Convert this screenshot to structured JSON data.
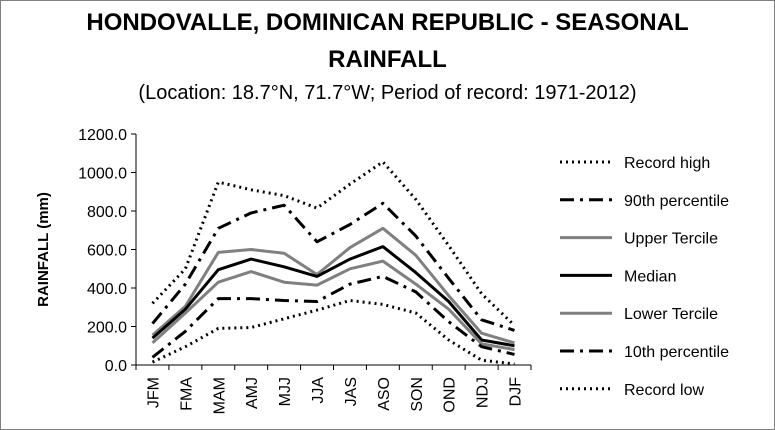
{
  "chart_data": {
    "type": "line",
    "title": "HONDOVALLE, DOMINICAN REPUBLIC - SEASONAL",
    "title_line2": "RAINFALL",
    "subtitle": "(Location: 18.7°N, 71.7°W; Period of record: 1971-2012)",
    "ylabel": "RAINFALL (mm)",
    "xlabel": "",
    "ylim": [
      0,
      1200
    ],
    "yticks": [
      "0.0",
      "200.0",
      "400.0",
      "600.0",
      "800.0",
      "1000.0",
      "1200.0"
    ],
    "categories": [
      "JFM",
      "FMA",
      "MAM",
      "AMJ",
      "MJJ",
      "JJA",
      "JAS",
      "ASO",
      "SON",
      "OND",
      "NDJ",
      "DJF"
    ],
    "legend_position": "right",
    "grid": "none",
    "series": [
      {
        "name": "Record high",
        "color": "#000000",
        "style": "dotted",
        "values": [
          320,
          500,
          950,
          910,
          880,
          815,
          940,
          1055,
          860,
          620,
          370,
          205
        ]
      },
      {
        "name": "90th percentile",
        "color": "#000000",
        "style": "dashdot",
        "values": [
          215,
          420,
          710,
          790,
          830,
          640,
          730,
          840,
          670,
          450,
          235,
          180
        ]
      },
      {
        "name": "Upper Tercile",
        "color": "#808080",
        "style": "solid",
        "values": [
          155,
          305,
          585,
          600,
          580,
          470,
          610,
          710,
          570,
          360,
          165,
          115
        ]
      },
      {
        "name": "Median",
        "color": "#000000",
        "style": "solid",
        "values": [
          140,
          290,
          495,
          550,
          510,
          460,
          550,
          615,
          480,
          330,
          130,
          100
        ]
      },
      {
        "name": "Lower Tercile",
        "color": "#808080",
        "style": "solid",
        "values": [
          115,
          270,
          430,
          485,
          430,
          415,
          500,
          540,
          420,
          290,
          110,
          80
        ]
      },
      {
        "name": "10th percentile",
        "color": "#000000",
        "style": "dashdot",
        "values": [
          40,
          175,
          345,
          345,
          335,
          330,
          420,
          460,
          380,
          225,
          95,
          55
        ]
      },
      {
        "name": "Record low",
        "color": "#000000",
        "style": "dotted",
        "values": [
          15,
          95,
          190,
          195,
          240,
          285,
          335,
          315,
          270,
          130,
          25,
          5
        ]
      }
    ]
  }
}
